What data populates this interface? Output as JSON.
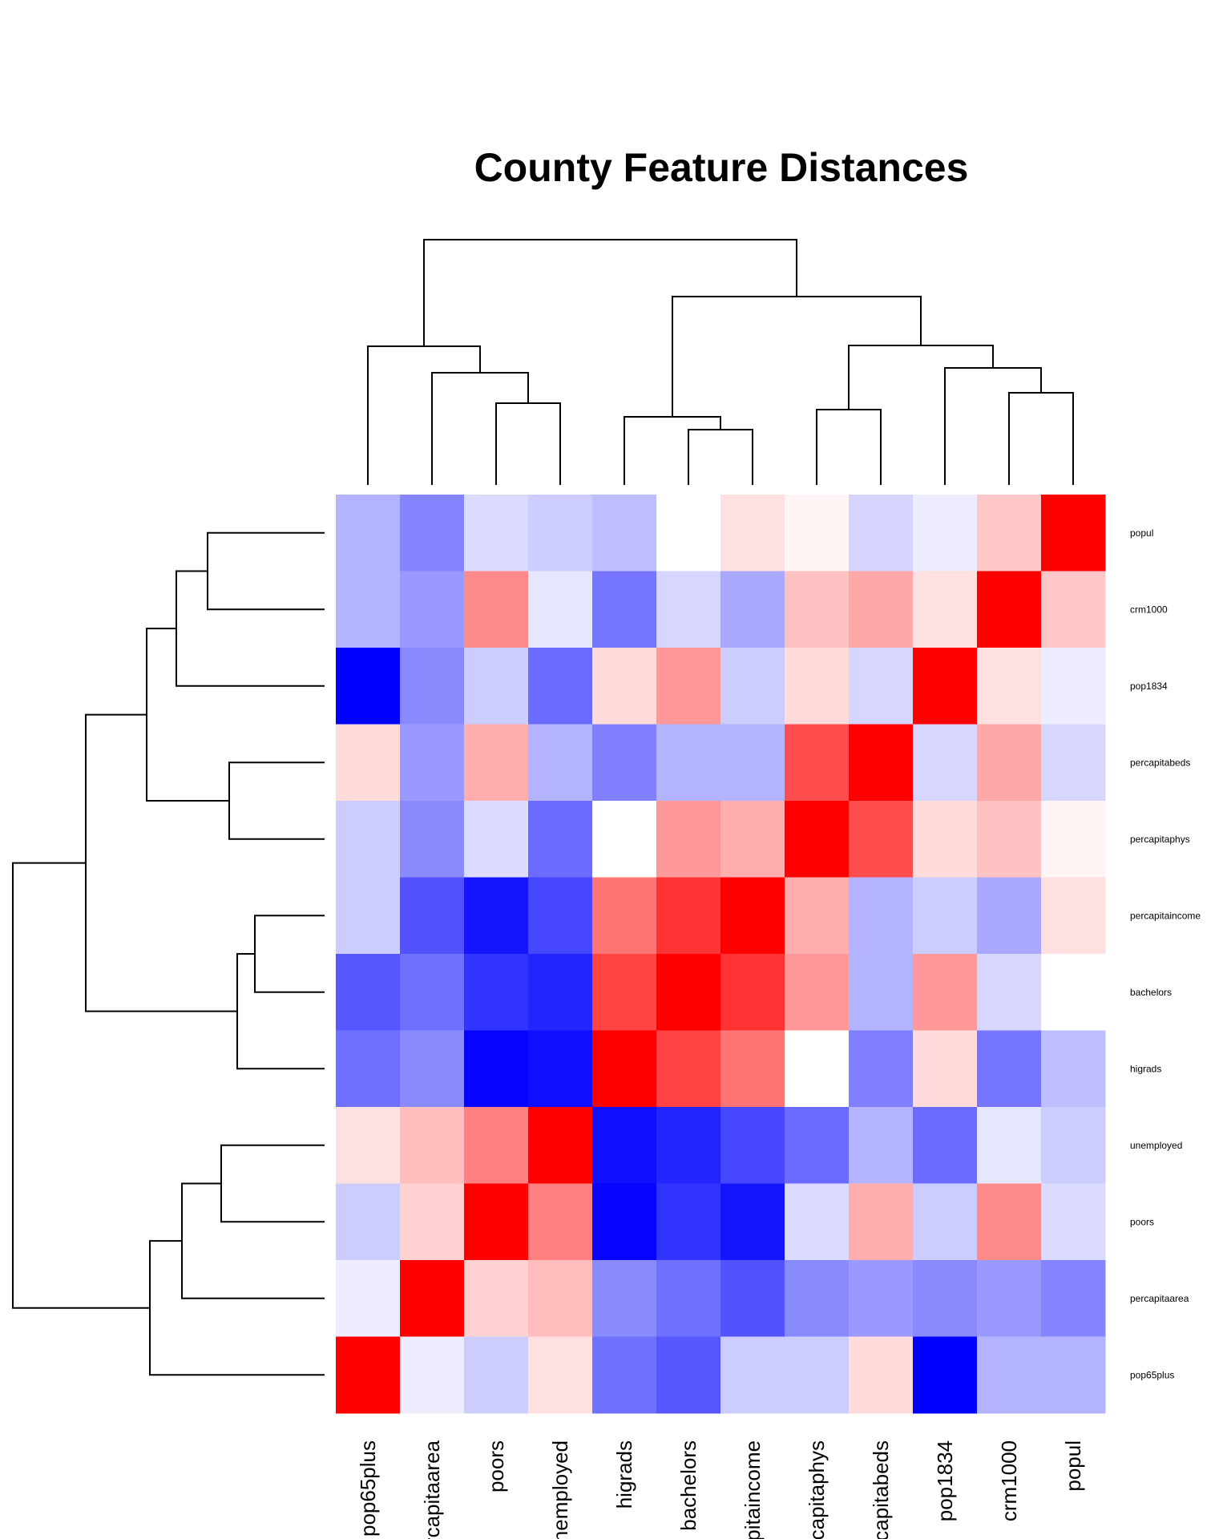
{
  "chart_data": {
    "type": "heatmap",
    "title": "County Feature Distances",
    "row_labels": [
      "popul",
      "crm1000",
      "pop1834",
      "percapitabeds",
      "percapitaphys",
      "percapitaincome",
      "bachelors",
      "higrads",
      "unemployed",
      "poors",
      "percapitaarea",
      "pop65plus"
    ],
    "col_labels": [
      "pop65plus",
      "percapitaarea",
      "poors",
      "unemployed",
      "higrads",
      "bachelors",
      "percapitaincome",
      "percapitaphys",
      "percapitabeds",
      "pop1834",
      "crm1000",
      "popul"
    ],
    "value_range": [
      -1,
      1
    ],
    "colorscale": {
      "low": "#0000ff",
      "mid": "#ffffff",
      "high": "#ff0000"
    },
    "values": [
      [
        -0.3,
        -0.48,
        -0.14,
        -0.2,
        -0.26,
        0.0,
        0.12,
        0.04,
        -0.17,
        -0.07,
        0.22,
        1.0
      ],
      [
        -0.3,
        -0.4,
        0.46,
        -0.1,
        -0.54,
        -0.16,
        -0.34,
        0.24,
        0.34,
        0.12,
        1.0,
        0.22
      ],
      [
        -1.0,
        -0.46,
        -0.2,
        -0.58,
        0.14,
        0.4,
        -0.2,
        0.14,
        -0.16,
        1.0,
        0.12,
        -0.07
      ],
      [
        0.14,
        -0.4,
        0.32,
        -0.3,
        -0.5,
        -0.3,
        -0.3,
        0.7,
        1.0,
        -0.16,
        0.34,
        -0.16
      ],
      [
        -0.2,
        -0.46,
        -0.14,
        -0.58,
        0.0,
        0.4,
        0.32,
        1.0,
        0.7,
        0.14,
        0.24,
        0.04
      ],
      [
        -0.2,
        -0.68,
        -0.92,
        -0.72,
        0.54,
        0.8,
        1.0,
        0.32,
        -0.3,
        -0.2,
        -0.34,
        0.12
      ],
      [
        -0.66,
        -0.56,
        -0.8,
        -0.86,
        0.74,
        1.0,
        0.8,
        0.4,
        -0.3,
        0.4,
        -0.16,
        0.0
      ],
      [
        -0.56,
        -0.46,
        -0.98,
        -0.94,
        1.0,
        0.74,
        0.54,
        0.0,
        -0.5,
        0.14,
        -0.54,
        -0.26
      ],
      [
        0.12,
        0.26,
        0.5,
        1.0,
        -0.94,
        -0.86,
        -0.72,
        -0.58,
        -0.3,
        -0.58,
        -0.1,
        -0.2
      ],
      [
        -0.2,
        0.18,
        1.0,
        0.5,
        -0.98,
        -0.8,
        -0.92,
        -0.14,
        0.32,
        -0.2,
        0.46,
        -0.14
      ],
      [
        -0.07,
        1.0,
        0.18,
        0.26,
        -0.46,
        -0.56,
        -0.68,
        -0.46,
        -0.4,
        -0.46,
        -0.4,
        -0.48
      ],
      [
        1.0,
        -0.07,
        -0.2,
        0.12,
        -0.56,
        -0.66,
        -0.2,
        -0.2,
        0.14,
        -1.0,
        -0.3,
        -0.3
      ]
    ],
    "column_dendrogram": true,
    "row_dendrogram": true
  }
}
